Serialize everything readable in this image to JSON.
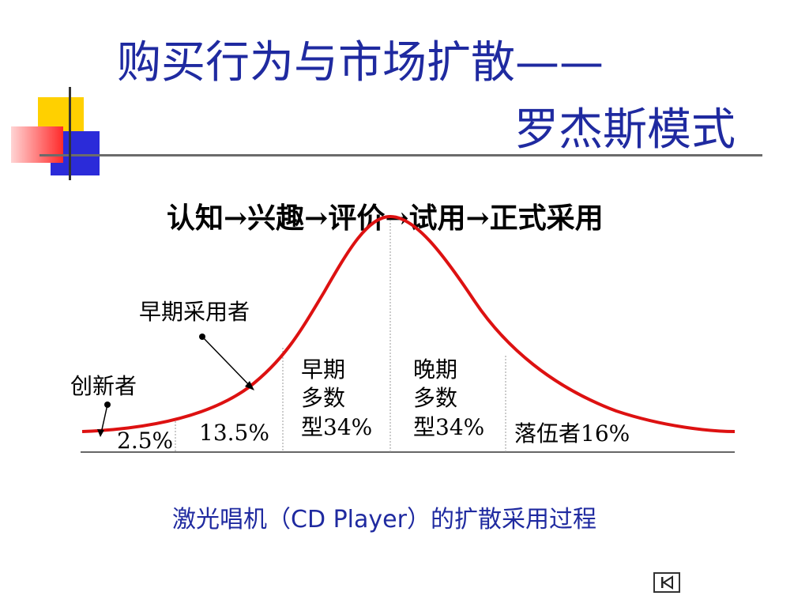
{
  "title": {
    "line1": "购买行为与市场扩散——",
    "line2": "罗杰斯模式"
  },
  "stages": "认知→兴趣→评价→试用→正式采用",
  "labels": {
    "early_adopters_callout": "早期采用者",
    "innovators_callout": "创新者",
    "innovators_pct": "2.5%",
    "early_adopters_pct": "13.5%",
    "early_majority": [
      "早期",
      "多数",
      "型34%"
    ],
    "late_majority": [
      "晚期",
      "多数",
      "型34%"
    ],
    "laggards": "落伍者16%"
  },
  "caption": "激光唱机（CD Player）的扩散采用过程",
  "colors": {
    "title": "#1f2aa0",
    "curve": "#dd1111",
    "caption": "#1f2aa0"
  },
  "icons": {
    "nav": "skip-to-start-icon"
  }
}
